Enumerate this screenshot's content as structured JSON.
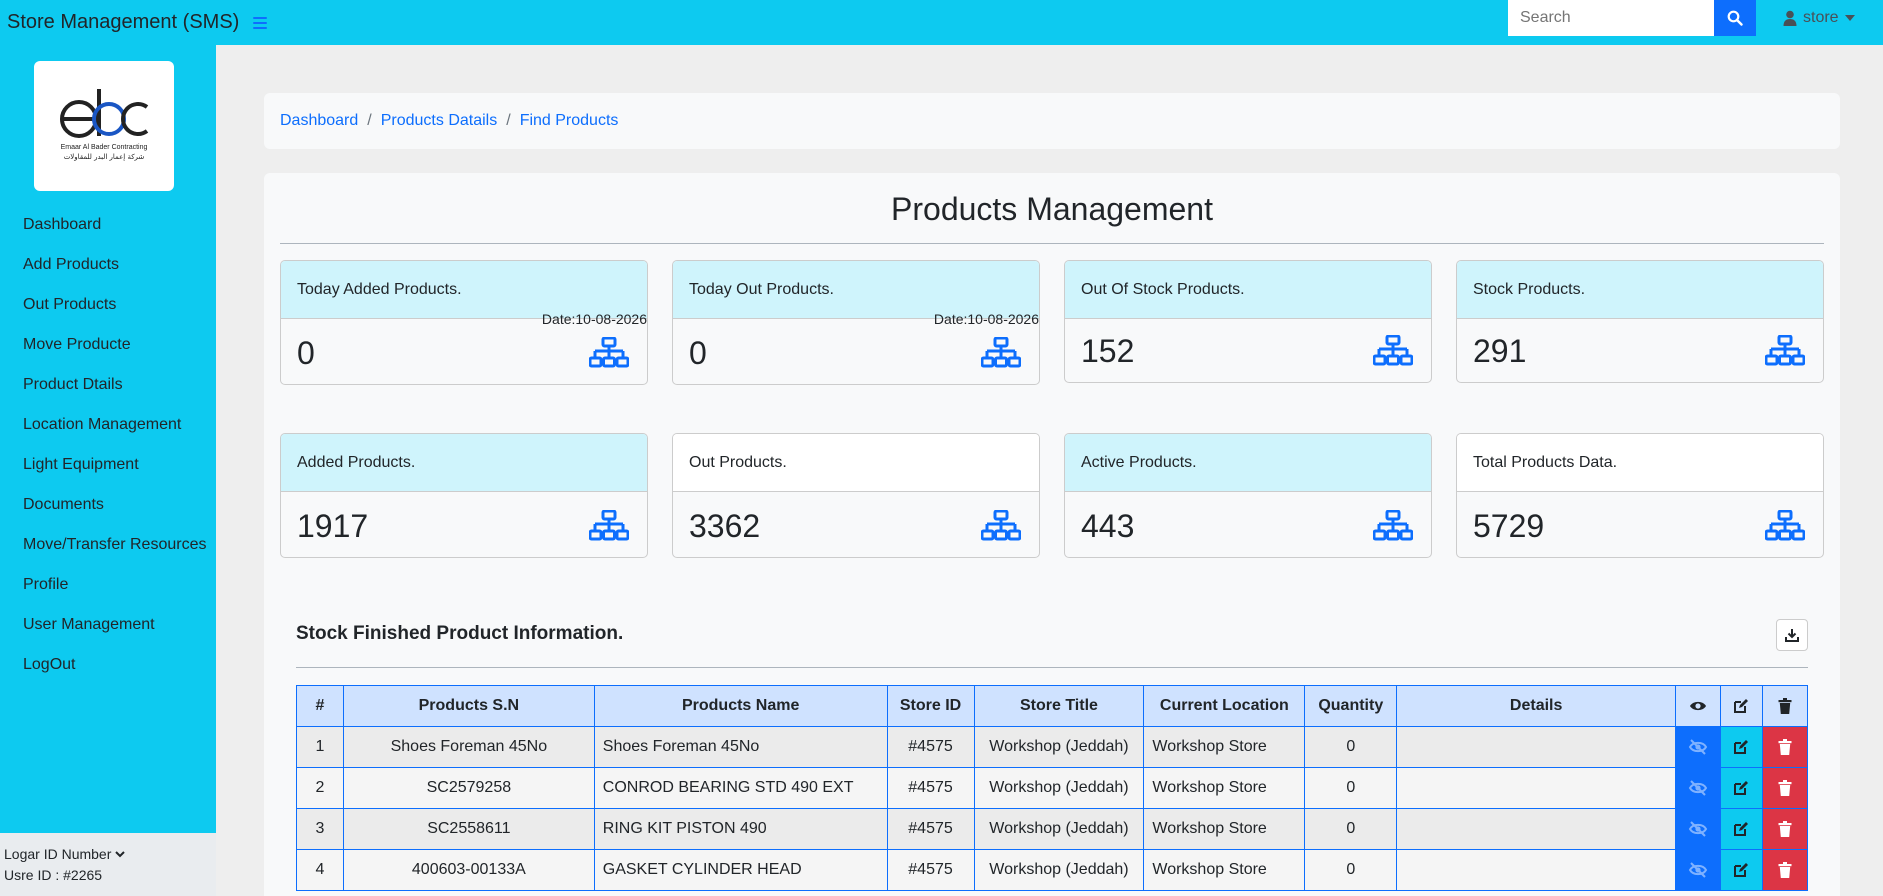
{
  "app": {
    "title": "Store Management (SMS)",
    "accent": "#0dcaf0",
    "primary": "#0d6efd",
    "danger": "#dc3545"
  },
  "search": {
    "placeholder": "Search"
  },
  "user": {
    "name": "store"
  },
  "sidebar": {
    "logo": {
      "initials": "ebc",
      "company_en": "Emaar Al Bader Contracting",
      "company_ar": "شركة إعمار البدر للمقاولات"
    },
    "items": [
      {
        "label": "Dashboard"
      },
      {
        "label": "Add Products"
      },
      {
        "label": "Out Products"
      },
      {
        "label": "Move Producte"
      },
      {
        "label": "Product Dtails"
      },
      {
        "label": "Location Management"
      },
      {
        "label": "Light Equipment"
      },
      {
        "label": "Documents"
      },
      {
        "label": "Move/Transfer Resources"
      },
      {
        "label": "Profile"
      },
      {
        "label": "User Management"
      },
      {
        "label": "LogOut"
      }
    ],
    "footer": {
      "logar_label": "Logar ID Number",
      "user_id": "Usre ID : #2265"
    }
  },
  "breadcrumb": [
    "Dashboard",
    "Products Datails",
    "Find Products"
  ],
  "main": {
    "title": "Products Management",
    "stats": [
      {
        "label": "Today Added Products.",
        "value": "0",
        "date": "Date:10-08-2026",
        "icon": "sitemap-icon"
      },
      {
        "label": "Today Out Products.",
        "value": "0",
        "date": "Date:10-08-2026",
        "icon": "sitemap-icon"
      },
      {
        "label": "Out Of Stock Products.",
        "value": "152",
        "icon": "sitemap-icon"
      },
      {
        "label": "Stock Products.",
        "value": "291",
        "icon": "sitemap-icon"
      },
      {
        "label": "Added Products.",
        "value": "1917",
        "icon": "sitemap-icon"
      },
      {
        "label": "Out Products.",
        "value": "3362",
        "icon": "sitemap-icon"
      },
      {
        "label": "Active Products.",
        "value": "443",
        "icon": "sitemap-icon"
      },
      {
        "label": "Total Products Data.",
        "value": "5729",
        "icon": "sitemap-icon"
      }
    ],
    "section_title": "Stock Finished Product Information.",
    "table": {
      "columns": [
        "#",
        "Products S.N",
        "Products Name",
        "Store ID",
        "Store Title",
        "Current Location",
        "Quantity",
        "Details"
      ],
      "action_icons": [
        "eye-icon",
        "edit-icon",
        "trash-icon"
      ],
      "rows": [
        {
          "n": "1",
          "sn": "Shoes Foreman 45No",
          "name": "Shoes Foreman 45No",
          "store_id": "#4575",
          "store_title": "Workshop (Jeddah)",
          "location": "Workshop Store",
          "qty": "0",
          "details": ""
        },
        {
          "n": "2",
          "sn": "SC2579258",
          "name": "CONROD BEARING STD 490 EXT",
          "store_id": "#4575",
          "store_title": "Workshop (Jeddah)",
          "location": "Workshop Store",
          "qty": "0",
          "details": ""
        },
        {
          "n": "3",
          "sn": "SC2558611",
          "name": "RING KIT PISTON 490",
          "store_id": "#4575",
          "store_title": "Workshop (Jeddah)",
          "location": "Workshop Store",
          "qty": "0",
          "details": ""
        },
        {
          "n": "4",
          "sn": "400603-00133A",
          "name": "GASKET CYLINDER HEAD",
          "store_id": "#4575",
          "store_title": "Workshop (Jeddah)",
          "location": "Workshop Store",
          "qty": "0",
          "details": ""
        }
      ]
    }
  }
}
